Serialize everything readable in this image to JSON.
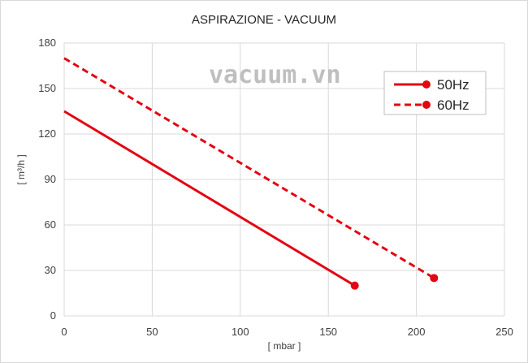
{
  "watermark": "vacuum.vn",
  "chart_data": {
    "type": "line",
    "title": "ASPIRAZIONE - VACUUM",
    "xlabel": "[ mbar ]",
    "ylabel": "[ m³/h ]",
    "xlim": [
      0,
      250
    ],
    "ylim": [
      0,
      180
    ],
    "xticks": [
      0,
      50,
      100,
      150,
      200,
      250
    ],
    "yticks": [
      0,
      30,
      60,
      90,
      120,
      150,
      180
    ],
    "grid": "vertical and horizontal major gridlines",
    "legend_position": "top-right",
    "series": [
      {
        "name": "50Hz",
        "style": "solid",
        "color": "#e30613",
        "points": [
          [
            0,
            135
          ],
          [
            165,
            20
          ]
        ],
        "end_marker": true
      },
      {
        "name": "60Hz",
        "style": "dashed",
        "color": "#e30613",
        "points": [
          [
            0,
            170
          ],
          [
            210,
            25
          ]
        ],
        "end_marker": true
      }
    ]
  }
}
